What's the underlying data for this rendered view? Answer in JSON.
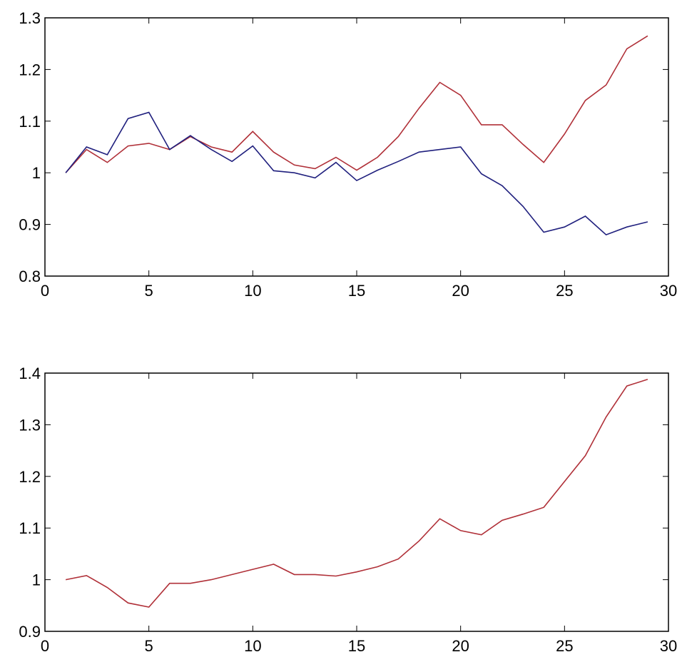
{
  "chart_data": [
    {
      "type": "line",
      "x": [
        1,
        2,
        3,
        4,
        5,
        6,
        7,
        8,
        9,
        10,
        11,
        12,
        13,
        14,
        15,
        16,
        17,
        18,
        19,
        20,
        21,
        22,
        23,
        24,
        25,
        26,
        27,
        28,
        29
      ],
      "series": [
        {
          "color": "#b03038",
          "values": [
            1.0,
            1.045,
            1.02,
            1.052,
            1.057,
            1.045,
            1.07,
            1.05,
            1.04,
            1.08,
            1.04,
            1.015,
            1.008,
            1.03,
            1.005,
            1.03,
            1.07,
            1.125,
            1.175,
            1.15,
            1.093,
            1.093,
            1.055,
            1.02,
            1.075,
            1.14,
            1.17,
            1.24,
            1.265
          ]
        },
        {
          "color": "#20207e",
          "values": [
            1.0,
            1.05,
            1.035,
            1.105,
            1.117,
            1.045,
            1.072,
            1.045,
            1.022,
            1.052,
            1.004,
            1.0,
            0.99,
            1.02,
            0.985,
            1.005,
            1.022,
            1.04,
            1.045,
            1.05,
            0.998,
            0.975,
            0.935,
            0.885,
            0.895,
            0.916,
            0.88,
            0.895,
            0.905
          ]
        }
      ],
      "xlim": [
        0,
        30
      ],
      "ylim": [
        0.8,
        1.3
      ],
      "xticks": [
        "0",
        "5",
        "10",
        "15",
        "20",
        "25",
        "30"
      ],
      "yticks": [
        "0.8",
        "0.9",
        "1",
        "1.1",
        "1.2",
        "1.3"
      ],
      "grid": false
    },
    {
      "type": "line",
      "x": [
        1,
        2,
        3,
        4,
        5,
        6,
        7,
        8,
        9,
        10,
        11,
        12,
        13,
        14,
        15,
        16,
        17,
        18,
        19,
        20,
        21,
        22,
        23,
        24,
        25,
        26,
        27,
        28,
        29
      ],
      "series": [
        {
          "color": "#b03038",
          "values": [
            1.0,
            1.008,
            0.985,
            0.955,
            0.947,
            0.993,
            0.993,
            1.0,
            1.01,
            1.02,
            1.03,
            1.01,
            1.01,
            1.007,
            1.015,
            1.025,
            1.04,
            1.075,
            1.118,
            1.095,
            1.087,
            1.115,
            1.127,
            1.14,
            1.19,
            1.24,
            1.315,
            1.375,
            1.388
          ]
        }
      ],
      "xlim": [
        0,
        30
      ],
      "ylim": [
        0.9,
        1.4
      ],
      "xticks": [
        "0",
        "5",
        "10",
        "15",
        "20",
        "25",
        "30"
      ],
      "yticks": [
        "0.9",
        "1",
        "1.1",
        "1.2",
        "1.3",
        "1.4"
      ],
      "grid": false
    }
  ]
}
